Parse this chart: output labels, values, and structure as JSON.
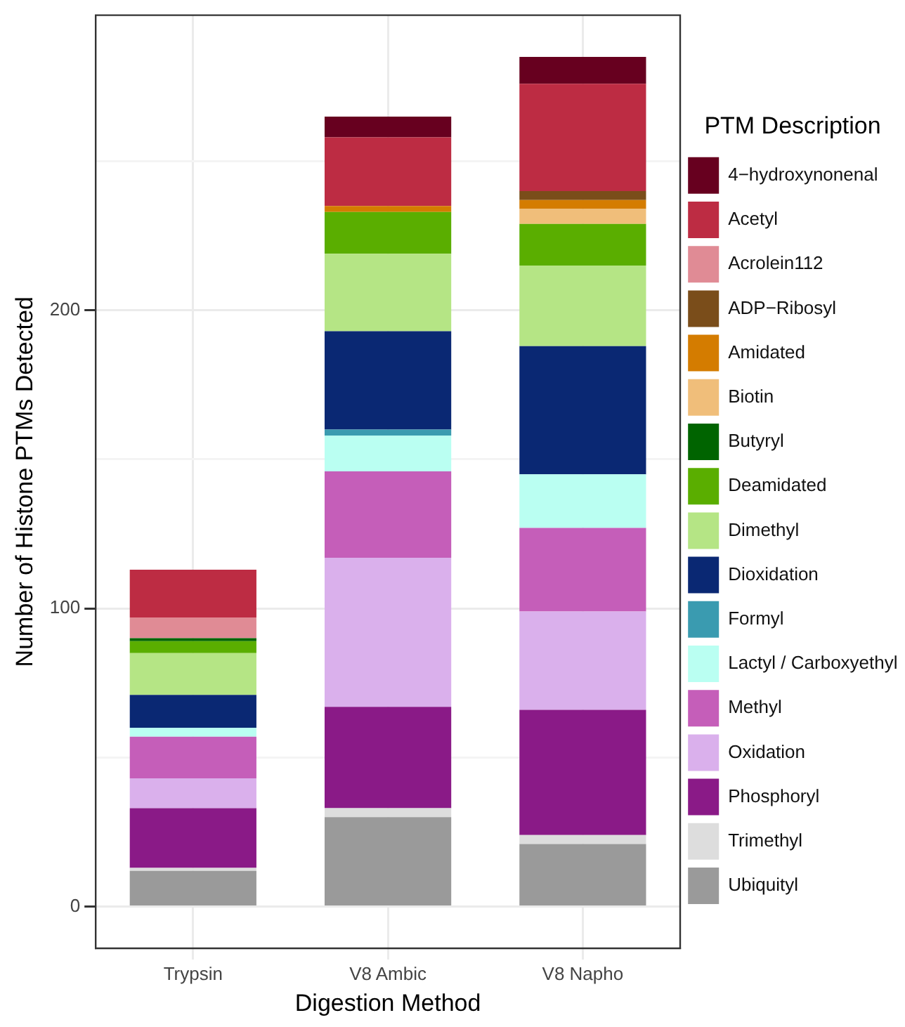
{
  "chart_data": {
    "type": "bar",
    "stacked": true,
    "xlabel": "Digestion Method",
    "ylabel": "Number of Histone PTMs Detected",
    "legend_title": "PTM Description",
    "legend": "right",
    "grid": true,
    "categories": [
      "Trypsin",
      "V8 Ambic",
      "V8 Napho"
    ],
    "ylim": [
      -14,
      299
    ],
    "yticks": [
      0,
      {
        "value": 50,
        "label": null
      },
      100,
      {
        "value": 150,
        "label": null
      },
      200,
      {
        "value": 250,
        "label": null
      }
    ],
    "series": [
      {
        "name": "Ubiquityl",
        "color": "#9a9a9a",
        "values": [
          12,
          30,
          21
        ]
      },
      {
        "name": "Trimethyl",
        "color": "#dddddd",
        "values": [
          1,
          3,
          3
        ]
      },
      {
        "name": "Phosphoryl",
        "color": "#8a1a87",
        "values": [
          20,
          34,
          42
        ]
      },
      {
        "name": "Oxidation",
        "color": "#dab0ec",
        "values": [
          10,
          50,
          33
        ]
      },
      {
        "name": "Methyl",
        "color": "#c55eb9",
        "values": [
          14,
          29,
          28
        ]
      },
      {
        "name": "Lactyl / Carboxyethyl",
        "color": "#bafff2",
        "values": [
          3,
          12,
          18
        ]
      },
      {
        "name": "Formyl",
        "color": "#3a9bb0",
        "values": [
          0,
          2,
          0
        ]
      },
      {
        "name": "Dioxidation",
        "color": "#0a2873",
        "values": [
          11,
          33,
          43
        ]
      },
      {
        "name": "Dimethyl",
        "color": "#b5e585",
        "values": [
          14,
          26,
          27
        ]
      },
      {
        "name": "Deamidated",
        "color": "#5aae00",
        "values": [
          4,
          14,
          14
        ]
      },
      {
        "name": "Butyryl",
        "color": "#006400",
        "values": [
          1,
          0,
          0
        ]
      },
      {
        "name": "Biotin",
        "color": "#f0be7a",
        "values": [
          0,
          0,
          5
        ]
      },
      {
        "name": "Amidated",
        "color": "#d47c00",
        "values": [
          0,
          2,
          3
        ]
      },
      {
        "name": "ADP−Ribosyl",
        "color": "#7a4d1a",
        "values": [
          0,
          0,
          3
        ]
      },
      {
        "name": "Acrolein112",
        "color": "#e08b95",
        "values": [
          7,
          0,
          0
        ]
      },
      {
        "name": "Acetyl",
        "color": "#bd2c43",
        "values": [
          16,
          23,
          36
        ]
      },
      {
        "name": "4−hydroxynonenal",
        "color": "#67001f",
        "values": [
          0,
          7,
          9
        ]
      }
    ]
  }
}
